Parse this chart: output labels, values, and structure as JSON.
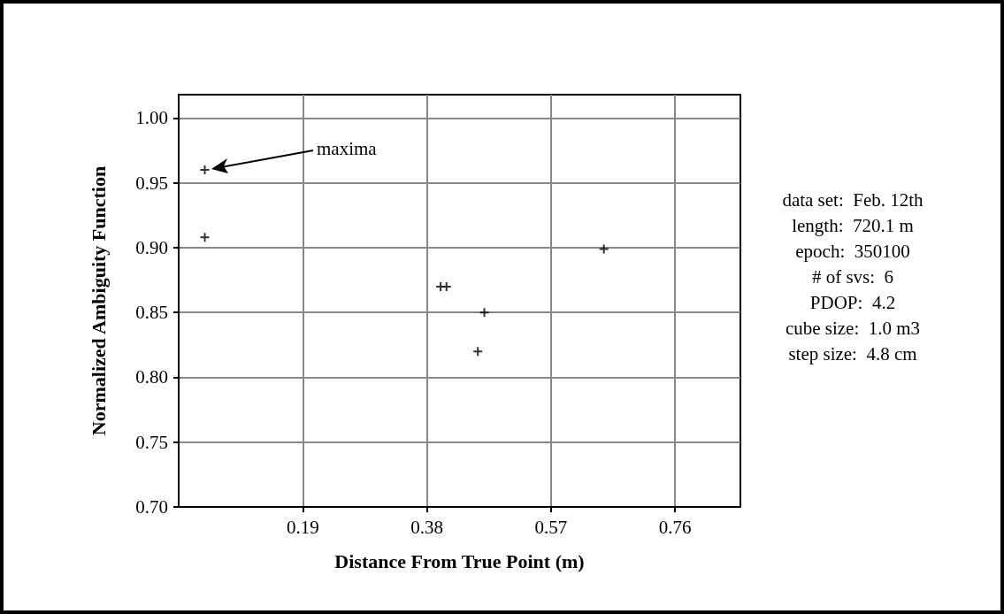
{
  "chart_data": {
    "type": "scatter",
    "xlabel": "Distance From True Point (m)",
    "ylabel": "Normalized Ambiguity Function",
    "x": [
      0.04,
      0.04,
      0.401,
      0.41,
      0.468,
      0.458,
      0.651
    ],
    "values": [
      0.96,
      0.908,
      0.87,
      0.87,
      0.85,
      0.82,
      0.899
    ],
    "color": "#000000",
    "marker": "cross",
    "grid": true,
    "xlim": [
      0,
      0.86
    ],
    "xticks": [
      0.19,
      0.38,
      0.57,
      0.76
    ],
    "ylim": [
      0.7,
      1.018
    ],
    "yticks": [
      {
        "value": 0.7,
        "label": "0.70"
      },
      {
        "value": 0.75,
        "label": "0.75"
      },
      {
        "value": 0.8,
        "label": "0.80"
      },
      {
        "value": 0.85,
        "label": "0.85"
      },
      {
        "value": 0.9,
        "label": "0.90"
      },
      {
        "value": 0.95,
        "label": "0.95"
      },
      {
        "value": 1.0,
        "label": "1.00"
      }
    ],
    "annotations": [
      "maxima",
      "data set:  Feb. 12th",
      "length:  720.1 m",
      "epoch:  350100",
      "# of svs:  6",
      "PDOP:  4.2",
      "cube size:  1.0 m3",
      "step size:  4.8 cm"
    ]
  }
}
